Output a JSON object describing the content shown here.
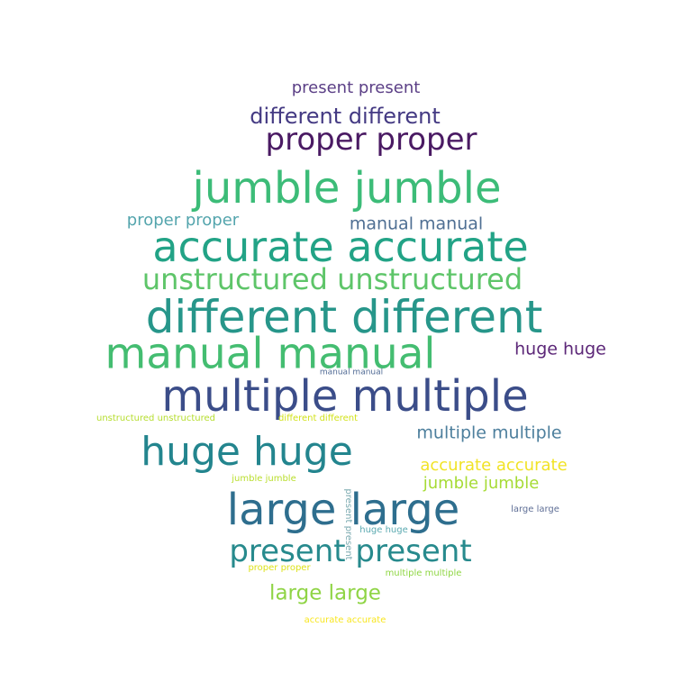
{
  "words": [
    {
      "text": "present present",
      "color": "#5b3f86"
    },
    {
      "text": "different different",
      "color": "#443a83"
    },
    {
      "text": "proper proper",
      "color": "#4a1a63"
    },
    {
      "text": "jumble jumble",
      "color": "#3cbc78"
    },
    {
      "text": "proper proper",
      "color": "#54a5ad"
    },
    {
      "text": "manual manual",
      "color": "#4f6f93"
    },
    {
      "text": "accurate accurate",
      "color": "#22a386"
    },
    {
      "text": "unstructured unstructured",
      "color": "#5ec569"
    },
    {
      "text": "different different",
      "color": "#27968a"
    },
    {
      "text": "manual manual",
      "color": "#44bd71"
    },
    {
      "text": "huge huge",
      "color": "#5c2778"
    },
    {
      "text": "manual manual",
      "color": "#516b95"
    },
    {
      "text": "multiple multiple",
      "color": "#3b4d89"
    },
    {
      "text": "unstructured unstructured",
      "color": "#b5dd2d"
    },
    {
      "text": "different different",
      "color": "#d2e21b"
    },
    {
      "text": "huge huge",
      "color": "#23858e"
    },
    {
      "text": "multiple multiple",
      "color": "#4d7f9d"
    },
    {
      "text": "accurate accurate",
      "color": "#f1e326"
    },
    {
      "text": "jumble jumble",
      "color": "#a6db35"
    },
    {
      "text": "jumble jumble",
      "color": "#b9de2c"
    },
    {
      "text": "large large",
      "color": "#2e6e8e"
    },
    {
      "text": "present present",
      "color": "#7baab0"
    },
    {
      "text": "large large",
      "color": "#5f6f96"
    },
    {
      "text": "huge huge",
      "color": "#5aa9b0"
    },
    {
      "text": "present present",
      "color": "#278a8d"
    },
    {
      "text": "proper proper",
      "color": "#dde21a"
    },
    {
      "text": "multiple multiple",
      "color": "#8fd644"
    },
    {
      "text": "large large",
      "color": "#8fd445"
    },
    {
      "text": "accurate accurate",
      "color": "#f8e61f"
    }
  ]
}
